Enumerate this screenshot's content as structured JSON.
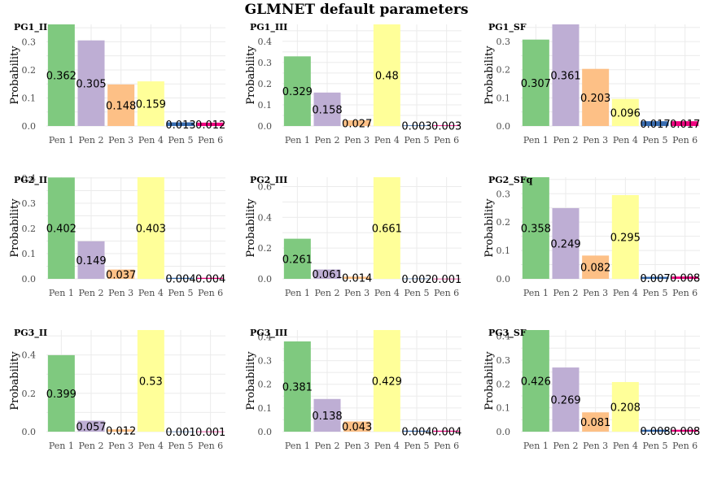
{
  "title": "GLMNET default parameters",
  "colors": [
    "#7fc97f",
    "#beaed4",
    "#fdc086",
    "#ffff99",
    "#386cb0",
    "#f0027f"
  ],
  "chart_data": [
    {
      "type": "bar",
      "title": "PG1_II",
      "ylabel": "Probability",
      "categories": [
        "Pen 1",
        "Pen 2",
        "Pen 3",
        "Pen 4",
        "Pen 5",
        "Pen 6"
      ],
      "values": [
        0.362,
        0.305,
        0.148,
        0.159,
        0.013,
        0.012
      ],
      "labels": [
        "0.362",
        "0.305",
        "0.148",
        "0.159",
        "0.013",
        "0.012"
      ],
      "yticks": [
        "0.0",
        "0.1",
        "0.2",
        "0.3"
      ],
      "ylim": [
        0,
        0.362
      ]
    },
    {
      "type": "bar",
      "title": "PG1_III",
      "ylabel": "Probability",
      "categories": [
        "Pen 1",
        "Pen 2",
        "Pen 3",
        "Pen 4",
        "Pen 5",
        "Pen 6"
      ],
      "values": [
        0.329,
        0.158,
        0.027,
        0.48,
        0.003,
        0.003
      ],
      "labels": [
        "0.329",
        "0.158",
        "0.027",
        "0.48",
        "0.003",
        "0.003"
      ],
      "yticks": [
        "0.0",
        "0.1",
        "0.2",
        "0.3",
        "0.4"
      ],
      "ylim": [
        0,
        0.48
      ]
    },
    {
      "type": "bar",
      "title": "PG1_SF",
      "ylabel": "Probability",
      "categories": [
        "Pen 1",
        "Pen 2",
        "Pen 3",
        "Pen 4",
        "Pen 5",
        "Pen 6"
      ],
      "values": [
        0.307,
        0.361,
        0.203,
        0.096,
        0.017,
        0.017
      ],
      "labels": [
        "0.307",
        "0.361",
        "0.203",
        "0.096",
        "0.017",
        "0.017"
      ],
      "yticks": [
        "0.0",
        "0.1",
        "0.2",
        "0.3"
      ],
      "ylim": [
        0,
        0.361
      ]
    },
    {
      "type": "bar",
      "title": "PG2_II",
      "ylabel": "Probability",
      "categories": [
        "Pen 1",
        "Pen 2",
        "Pen 3",
        "Pen 4",
        "Pen 5",
        "Pen 6"
      ],
      "values": [
        0.402,
        0.149,
        0.037,
        0.403,
        0.004,
        0.004
      ],
      "labels": [
        "0.402",
        "0.149",
        "0.037",
        "0.403",
        "0.004",
        "0.004"
      ],
      "yticks": [
        "0.0",
        "0.1",
        "0.2",
        "0.3",
        "0.4"
      ],
      "ylim": [
        0,
        0.403
      ]
    },
    {
      "type": "bar",
      "title": "PG2_III",
      "ylabel": "Probability",
      "categories": [
        "Pen 1",
        "Pen 2",
        "Pen 3",
        "Pen 4",
        "Pen 5",
        "Pen 6"
      ],
      "values": [
        0.261,
        0.061,
        0.014,
        0.661,
        0.002,
        0.001
      ],
      "labels": [
        "0.261",
        "0.061",
        "0.014",
        "0.661",
        "0.002",
        "0.001"
      ],
      "yticks": [
        "0.0",
        "0.2",
        "0.4",
        "0.6"
      ],
      "ylim": [
        0,
        0.661
      ]
    },
    {
      "type": "bar",
      "title": "PG2_SFq",
      "ylabel": "Probability",
      "categories": [
        "Pen 1",
        "Pen 2",
        "Pen 3",
        "Pen 4",
        "Pen 5",
        "Pen 6"
      ],
      "values": [
        0.358,
        0.249,
        0.082,
        0.295,
        0.007,
        0.008
      ],
      "labels": [
        "0.358",
        "0.249",
        "0.082",
        "0.295",
        "0.007",
        "0.008"
      ],
      "yticks": [
        "0.0",
        "0.1",
        "0.2",
        "0.3"
      ],
      "ylim": [
        0,
        0.358
      ]
    },
    {
      "type": "bar",
      "title": "PG3_II",
      "ylabel": "Probability",
      "categories": [
        "Pen 1",
        "Pen 2",
        "Pen 3",
        "Pen 4",
        "Pen 5",
        "Pen 6"
      ],
      "values": [
        0.399,
        0.057,
        0.012,
        0.53,
        0.001,
        0.001
      ],
      "labels": [
        "0.399",
        "0.057",
        "0.012",
        "0.53",
        "0.001",
        "0.001"
      ],
      "yticks": [
        "0.0",
        "0.2",
        "0.4"
      ],
      "ylim": [
        0,
        0.53
      ]
    },
    {
      "type": "bar",
      "title": "PG3_III",
      "ylabel": "Probability",
      "categories": [
        "Pen 1",
        "Pen 2",
        "Pen 3",
        "Pen 4",
        "Pen 5",
        "Pen 6"
      ],
      "values": [
        0.381,
        0.138,
        0.043,
        0.429,
        0.004,
        0.004
      ],
      "labels": [
        "0.381",
        "0.138",
        "0.043",
        "0.429",
        "0.004",
        "0.004"
      ],
      "yticks": [
        "0.0",
        "0.1",
        "0.2",
        "0.3",
        "0.4"
      ],
      "ylim": [
        0,
        0.429
      ]
    },
    {
      "type": "bar",
      "title": "PG3_SF",
      "ylabel": "Probability",
      "categories": [
        "Pen 1",
        "Pen 2",
        "Pen 3",
        "Pen 4",
        "Pen 5",
        "Pen 6"
      ],
      "values": [
        0.426,
        0.269,
        0.081,
        0.208,
        0.008,
        0.008
      ],
      "labels": [
        "0.426",
        "0.269",
        "0.081",
        "0.208",
        "0.008",
        "0.008"
      ],
      "yticks": [
        "0.0",
        "0.1",
        "0.2",
        "0.3",
        "0.4"
      ],
      "ylim": [
        0,
        0.426
      ]
    }
  ]
}
